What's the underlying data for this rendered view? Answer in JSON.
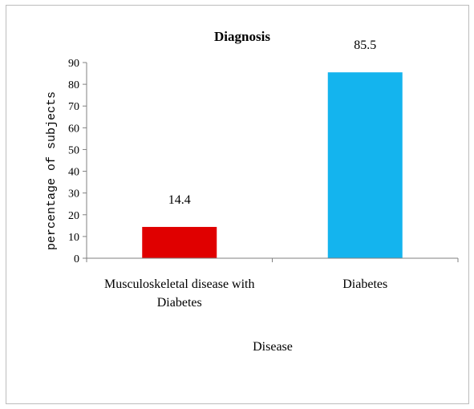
{
  "chart_data": {
    "type": "bar",
    "title": "Diagnosis",
    "categories": [
      [
        "Musculoskeletal  disease with",
        "Diabetes"
      ],
      [
        "Diabetes"
      ]
    ],
    "values": [
      14.4,
      85.5
    ],
    "data_labels": [
      "14.4",
      "85.5"
    ],
    "bar_colors": [
      "#e00000",
      "#14b4ee"
    ],
    "xlabel": "Disease",
    "ylabel": "percentage of subjects",
    "ylim": [
      0,
      90
    ],
    "yticks": [
      0,
      10,
      20,
      30,
      40,
      50,
      60,
      70,
      80,
      90
    ],
    "grid": false,
    "legend": "none"
  }
}
